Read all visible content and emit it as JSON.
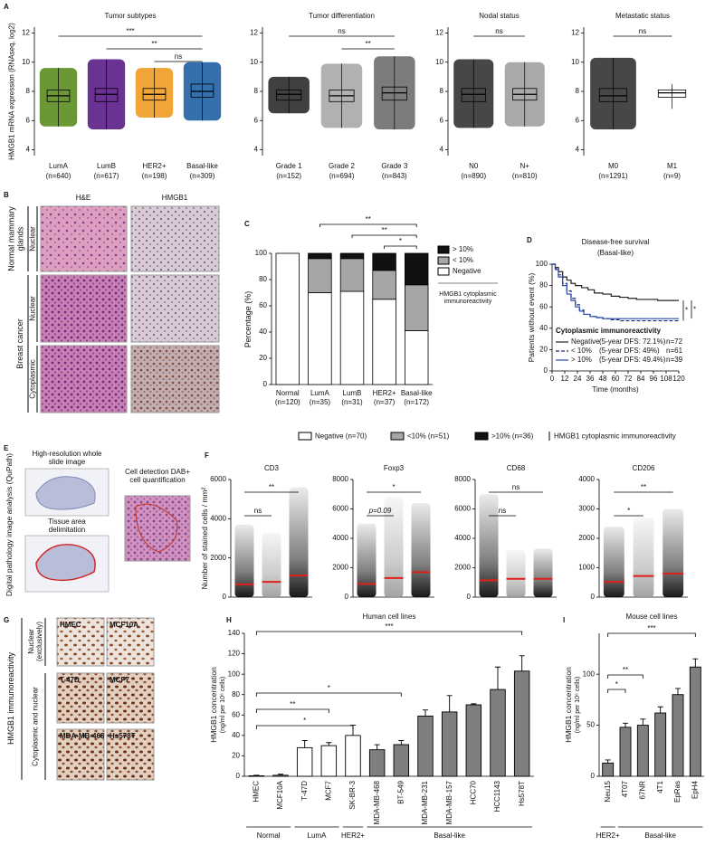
{
  "panel_labels": [
    "A",
    "B",
    "C",
    "D",
    "E",
    "F",
    "G",
    "H",
    "I"
  ],
  "panel_b": {
    "columns": [
      "H&E",
      "HMGB1"
    ],
    "groups": [
      "Normal mammary glands",
      "Breast cancer"
    ],
    "rows": [
      "Nuclear",
      "Nuclear",
      "Cytoplasmic"
    ]
  },
  "panel_e": {
    "side_label": "Digital pathology image analysis (QuPath)",
    "steps": [
      "High-resolution whole slide image",
      "Tissue area delimitation",
      "Cell detection DAB+ cell quantification"
    ]
  },
  "panel_g": {
    "cells": [
      "HMEC",
      "MCF10A",
      "T-47D",
      "MCF7",
      "MDA-MB-468",
      "Hs578T"
    ],
    "rows": [
      "Nuclear (exclusively)",
      "Cytoplasmic and nuclear"
    ],
    "side_label": "HMGB1 immunoreactivity"
  },
  "legend_row": {
    "items": [
      "Negative (n=70)",
      "<10% (n=51)",
      ">10% (n=36)"
    ],
    "colors": [
      "#ffffff",
      "#a6a6a6",
      "#111111"
    ],
    "note": "HMGB1 cytoplasmic immunoreactivity"
  },
  "chart_data": [
    {
      "type": "box",
      "title": "Tumor subtypes",
      "y_label": "HMGB1 mRNA expression (RNAseq, log2)",
      "categories": [
        "LumA",
        "LumB",
        "HER2+",
        "Basal-like"
      ],
      "n_labels": [
        "(n=640)",
        "(n=617)",
        "(n=198)",
        "(n=309)"
      ],
      "colors": [
        "#5b8c1e",
        "#5a1c86",
        "#f09a22",
        "#1f5fa3"
      ],
      "whisker_low": [
        5.6,
        5.4,
        6.2,
        6.0
      ],
      "q1": [
        7.3,
        7.3,
        7.4,
        7.6
      ],
      "median": [
        7.7,
        7.8,
        7.8,
        8.0
      ],
      "q3": [
        8.1,
        8.2,
        8.2,
        8.5
      ],
      "whisker_high": [
        9.6,
        10.2,
        9.6,
        10.0
      ],
      "ylim": [
        3.6,
        12.4
      ],
      "yticks": [
        4,
        6,
        8,
        10,
        12
      ],
      "comparisons": [
        {
          "from": "LumA",
          "to": "Basal-like",
          "label": "***"
        },
        {
          "from": "LumB",
          "to": "Basal-like",
          "label": "**"
        },
        {
          "from": "HER2+",
          "to": "Basal-like",
          "label": "ns"
        }
      ]
    },
    {
      "type": "box",
      "title": "Tumor differentiation",
      "categories": [
        "Grade 1",
        "Grade 2",
        "Grade 3"
      ],
      "n_labels": [
        "(n=152)",
        "(n=694)",
        "(n=843)"
      ],
      "colors": [
        "#2b2b2b",
        "#a9a9a9",
        "#6e6e6e"
      ],
      "whisker_low": [
        6.5,
        5.5,
        5.4
      ],
      "q1": [
        7.4,
        7.3,
        7.4
      ],
      "median": [
        7.8,
        7.7,
        7.9
      ],
      "q3": [
        8.1,
        8.1,
        8.3
      ],
      "whisker_high": [
        9.0,
        9.9,
        10.4
      ],
      "ylim": [
        3.6,
        12.4
      ],
      "yticks": [
        4,
        6,
        8,
        10,
        12
      ],
      "comparisons": [
        {
          "from": "Grade 1",
          "to": "Grade 3",
          "label": "ns"
        },
        {
          "from": "Grade 2",
          "to": "Grade 3",
          "label": "**"
        }
      ]
    },
    {
      "type": "box",
      "title": "Nodal status",
      "categories": [
        "N0",
        "N+"
      ],
      "n_labels": [
        "(n=890)",
        "(n=810)"
      ],
      "colors": [
        "#333333",
        "#a0a0a0"
      ],
      "whisker_low": [
        5.5,
        5.6
      ],
      "q1": [
        7.3,
        7.4
      ],
      "median": [
        7.8,
        7.8
      ],
      "q3": [
        8.2,
        8.2
      ],
      "whisker_high": [
        10.2,
        10.0
      ],
      "ylim": [
        3.6,
        12.4
      ],
      "yticks": [
        4,
        6,
        8,
        10,
        12
      ],
      "comparisons": [
        {
          "from": "N0",
          "to": "N+",
          "label": "ns"
        }
      ]
    },
    {
      "type": "box",
      "title": "Metastatic status",
      "categories": [
        "M0",
        "M1"
      ],
      "n_labels": [
        "(n=1291)",
        "(n=9)"
      ],
      "colors": [
        "#333333",
        "#ffffff"
      ],
      "whisker_low": [
        5.4,
        6.8
      ],
      "q1": [
        7.3,
        7.6
      ],
      "median": [
        7.7,
        7.9
      ],
      "q3": [
        8.2,
        8.1
      ],
      "whisker_high": [
        10.3,
        8.5
      ],
      "ylim": [
        3.6,
        12.4
      ],
      "yticks": [
        4,
        6,
        8,
        10,
        12
      ],
      "comparisons": [
        {
          "from": "M0",
          "to": "M1",
          "label": "ns"
        }
      ]
    },
    {
      "type": "stacked_bar",
      "y_label": "Percentage (%)",
      "categories": [
        "Normal",
        "LumA",
        "LumB",
        "HER2+",
        "Basal-like"
      ],
      "n_labels": [
        "(n=120)",
        "(n=35)",
        "(n=31)",
        "(n=37)",
        "(n=172)"
      ],
      "series": [
        {
          "name": "Negative",
          "color": "#ffffff",
          "values": [
            100,
            70,
            71,
            65,
            41
          ]
        },
        {
          "name": "< 10%",
          "color": "#a6a6a6",
          "values": [
            0,
            26,
            25,
            22,
            35
          ]
        },
        {
          "name": "> 10%",
          "color": "#111111",
          "values": [
            0,
            4,
            4,
            13,
            24
          ]
        }
      ],
      "ylim": [
        0,
        100
      ],
      "yticks": [
        0,
        20,
        40,
        60,
        80,
        100
      ],
      "legend_note": "HMGB1 cytoplasmic immunoreactivity",
      "comparisons": [
        {
          "from": "LumA",
          "to": "Basal-like",
          "label": "**"
        },
        {
          "from": "LumB",
          "to": "Basal-like",
          "label": "**"
        },
        {
          "from": "HER2+",
          "to": "Basal-like",
          "label": "*"
        }
      ]
    },
    {
      "type": "line",
      "step": true,
      "title": "Disease-free survival",
      "subtitle": "(Basal-like)",
      "x_label": "Time (months)",
      "y_label": "Patients without event (%)",
      "xlim": [
        0,
        120
      ],
      "xticks": [
        0,
        12,
        24,
        36,
        48,
        60,
        72,
        84,
        96,
        108,
        120
      ],
      "ylim": [
        0,
        100
      ],
      "yticks": [
        0,
        20,
        40,
        60,
        80,
        100
      ],
      "legend_title": "Cytoplasmic immunoreactivity",
      "series": [
        {
          "name": "Negative",
          "dfs_label": "(5-year DFS: 72.1%)",
          "n_label": "n=72",
          "color": "#222222",
          "style": "solid",
          "x": [
            0,
            3,
            6,
            10,
            14,
            18,
            22,
            28,
            34,
            40,
            48,
            56,
            64,
            72,
            80,
            90,
            100,
            110,
            120
          ],
          "values": [
            100,
            97,
            93,
            88,
            85,
            82,
            80,
            78,
            76,
            73,
            72,
            70,
            69,
            68,
            67,
            67,
            66,
            66,
            66
          ]
        },
        {
          "name": "< 10%",
          "dfs_label": "(5-year DFS: 49%)",
          "n_label": "n=61",
          "color": "#1a2a6e",
          "style": "dashed",
          "x": [
            0,
            3,
            6,
            10,
            14,
            18,
            22,
            26,
            30,
            36,
            42,
            48,
            56,
            64,
            72,
            80,
            90,
            100,
            110,
            120
          ],
          "values": [
            100,
            96,
            90,
            82,
            75,
            68,
            62,
            57,
            53,
            51,
            50,
            49,
            48,
            47,
            47,
            47,
            47,
            47,
            47,
            47
          ]
        },
        {
          "name": "> 10%",
          "dfs_label": "(5-year DFS: 49.4%)",
          "n_label": "n=39",
          "color": "#2a4ab0",
          "style": "solid",
          "x": [
            0,
            3,
            6,
            10,
            14,
            18,
            22,
            26,
            30,
            36,
            42,
            48,
            56,
            64,
            72,
            80,
            90,
            100,
            110,
            120
          ],
          "values": [
            100,
            95,
            88,
            80,
            72,
            66,
            60,
            56,
            53,
            51,
            50,
            49,
            49,
            49,
            49,
            49,
            49,
            49,
            49,
            49
          ]
        }
      ],
      "comparisons": [
        {
          "from": "Negative",
          "to": "< 10%",
          "label": "*"
        },
        {
          "from": "Negative",
          "to": "> 10%",
          "label": "*"
        }
      ]
    },
    {
      "type": "strip",
      "title": "CD3",
      "y_label": "Number of stained cells / mm²",
      "colors": [
        "#000000",
        "#999999",
        "#000000"
      ],
      "means": [
        650,
        780,
        1100
      ],
      "max": [
        3700,
        3300,
        5600
      ],
      "ylim": [
        0,
        6000
      ],
      "yticks": [
        0,
        2000,
        4000,
        6000
      ],
      "comparisons": [
        {
          "label": "ns"
        },
        {
          "label": "**"
        }
      ]
    },
    {
      "type": "strip",
      "title": "Foxp3",
      "colors": [
        "#000000",
        "#999999",
        "#000000"
      ],
      "means": [
        900,
        1300,
        1700
      ],
      "max": [
        5000,
        6800,
        6400
      ],
      "ylim": [
        0,
        8000
      ],
      "yticks": [
        0,
        2000,
        4000,
        6000,
        8000
      ],
      "comparisons": [
        {
          "label": "p=0.09"
        },
        {
          "label": "*"
        }
      ]
    },
    {
      "type": "strip",
      "title": "CD68",
      "colors": [
        "#000000",
        "#999999",
        "#000000"
      ],
      "means": [
        1150,
        1250,
        1250
      ],
      "max": [
        7000,
        3200,
        3300
      ],
      "ylim": [
        0,
        8000
      ],
      "yticks": [
        0,
        2000,
        4000,
        6000,
        8000
      ],
      "comparisons": [
        {
          "label": "ns"
        },
        {
          "label": "ns"
        }
      ]
    },
    {
      "type": "strip",
      "title": "CD206",
      "colors": [
        "#000000",
        "#999999",
        "#000000"
      ],
      "means": [
        520,
        720,
        800
      ],
      "max": [
        2400,
        2700,
        3000
      ],
      "ylim": [
        0,
        4000
      ],
      "yticks": [
        0,
        1000,
        2000,
        3000,
        4000
      ],
      "comparisons": [
        {
          "label": "*"
        },
        {
          "label": "**"
        }
      ]
    },
    {
      "type": "bar",
      "title": "Human cell lines",
      "y_label": "HMGB1 concentration",
      "y_sublabel": "(ng/ml per 10⁶ cells)",
      "categories": [
        "HMEC",
        "MCF10A",
        "T-47D",
        "MCF7",
        "SK-BR-3",
        "MDA-MB-468",
        "BT-549",
        "MDA-MB-231",
        "MDA-MB-157",
        "HCC70",
        "HCC1143",
        "Hs578T"
      ],
      "values": [
        0.5,
        1,
        28,
        30,
        40,
        26,
        31,
        59,
        63,
        70,
        85,
        103
      ],
      "errors": [
        0.5,
        1,
        7,
        3,
        10,
        5,
        4,
        6,
        16,
        1,
        22,
        15
      ],
      "colors": [
        "#ffffff",
        "#ffffff",
        "#ffffff",
        "#ffffff",
        "#ffffff",
        "#7f7f7f",
        "#7f7f7f",
        "#7f7f7f",
        "#7f7f7f",
        "#7f7f7f",
        "#7f7f7f",
        "#7f7f7f"
      ],
      "ylim": [
        0,
        140
      ],
      "yticks": [
        0,
        20,
        40,
        60,
        80,
        100,
        120,
        140
      ],
      "groups": [
        {
          "name": "Normal",
          "from": "HMEC",
          "to": "MCF10A"
        },
        {
          "name": "LumA",
          "from": "T-47D",
          "to": "MCF7"
        },
        {
          "name": "HER2+",
          "from": "SK-BR-3",
          "to": "SK-BR-3"
        },
        {
          "name": "Basal-like",
          "from": "MDA-MB-468",
          "to": "Hs578T"
        }
      ],
      "comparisons": [
        {
          "from": "HMEC",
          "to": "Hs578T",
          "label": "***"
        },
        {
          "from": "HMEC",
          "to": "BT-549",
          "label": "*"
        },
        {
          "from": "HMEC",
          "to": "MCF7",
          "label": "**"
        },
        {
          "from": "HMEC",
          "to": "SK-BR-3",
          "label": "*"
        }
      ]
    },
    {
      "type": "bar",
      "title": "Mouse cell lines",
      "y_label": "HMGB1 concentration",
      "y_sublabel": "(ng/ml per 10⁶ cells)",
      "categories": [
        "Neu15",
        "4T07",
        "67NR",
        "4T1",
        "EpRas",
        "EpH4"
      ],
      "values": [
        13,
        48,
        50,
        62,
        80,
        107
      ],
      "errors": [
        3,
        4,
        6,
        6,
        6,
        8
      ],
      "colors": [
        "#7f7f7f",
        "#7f7f7f",
        "#7f7f7f",
        "#7f7f7f",
        "#7f7f7f",
        "#7f7f7f"
      ],
      "ylim": [
        0,
        140
      ],
      "yticks": [
        0,
        50,
        100
      ],
      "groups": [
        {
          "name": "HER2+",
          "from": "Neu15",
          "to": "Neu15"
        },
        {
          "name": "Basal-like",
          "from": "4T07",
          "to": "EpH4"
        }
      ],
      "comparisons": [
        {
          "from": "Neu15",
          "to": "EpH4",
          "label": "***"
        },
        {
          "from": "Neu15",
          "to": "67NR",
          "label": "**"
        },
        {
          "from": "Neu15",
          "to": "4T07",
          "label": "*"
        }
      ]
    }
  ]
}
